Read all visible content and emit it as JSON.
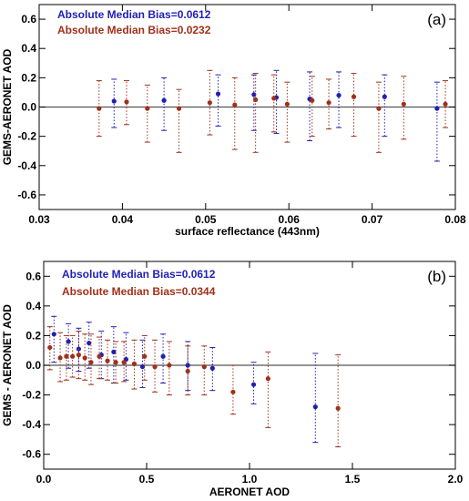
{
  "colors": {
    "blue": "#1f1fb4",
    "red": "#a0301a",
    "zero_line": "#555555"
  },
  "chart_data": [
    {
      "type": "scatter",
      "panel_label": "(a)",
      "xlabel": "surface reflectance (443nm)",
      "ylabel": "GEMS-AERONET AOD",
      "xlim": [
        0.03,
        0.08
      ],
      "ylim": [
        -0.7,
        0.7
      ],
      "x_ticks": [
        "0.03",
        "0.04",
        "0.05",
        "0.06",
        "0.07",
        "0.08"
      ],
      "y_ticks": [
        "-0.6",
        "-0.4",
        "-0.2",
        "0.0",
        "0.2",
        "0.4",
        "0.6"
      ],
      "legend": [
        "Absolute Median Bias=0.0612",
        "Absolute Median Bias=0.0232"
      ],
      "series": [
        {
          "color": "blue",
          "points": [
            {
              "x": 0.039,
              "y": 0.04,
              "lo": -0.14,
              "hi": 0.19
            },
            {
              "x": 0.045,
              "y": 0.045,
              "lo": -0.16,
              "hi": 0.2
            },
            {
              "x": 0.0515,
              "y": 0.09,
              "lo": -0.13,
              "hi": 0.22
            },
            {
              "x": 0.0558,
              "y": 0.085,
              "lo": -0.16,
              "hi": 0.22
            },
            {
              "x": 0.0585,
              "y": 0.065,
              "lo": -0.18,
              "hi": 0.25
            },
            {
              "x": 0.0625,
              "y": 0.055,
              "lo": -0.23,
              "hi": 0.24
            },
            {
              "x": 0.066,
              "y": 0.08,
              "lo": -0.14,
              "hi": 0.24
            },
            {
              "x": 0.0715,
              "y": 0.07,
              "lo": -0.2,
              "hi": 0.22
            },
            {
              "x": 0.0778,
              "y": -0.01,
              "lo": -0.37,
              "hi": 0.17
            }
          ]
        },
        {
          "color": "red",
          "points": [
            {
              "x": 0.0372,
              "y": -0.01,
              "lo": -0.2,
              "hi": 0.18
            },
            {
              "x": 0.0405,
              "y": 0.035,
              "lo": -0.12,
              "hi": 0.18
            },
            {
              "x": 0.043,
              "y": -0.01,
              "lo": -0.24,
              "hi": 0.15
            },
            {
              "x": 0.0468,
              "y": -0.01,
              "lo": -0.31,
              "hi": 0.12
            },
            {
              "x": 0.0505,
              "y": 0.03,
              "lo": -0.19,
              "hi": 0.25
            },
            {
              "x": 0.0535,
              "y": 0.015,
              "lo": -0.29,
              "hi": 0.2
            },
            {
              "x": 0.056,
              "y": 0.05,
              "lo": -0.31,
              "hi": 0.23
            },
            {
              "x": 0.0582,
              "y": 0.06,
              "lo": -0.17,
              "hi": 0.22
            },
            {
              "x": 0.0598,
              "y": 0.02,
              "lo": -0.24,
              "hi": 0.17
            },
            {
              "x": 0.0628,
              "y": 0.045,
              "lo": -0.2,
              "hi": 0.21
            },
            {
              "x": 0.0648,
              "y": 0.03,
              "lo": -0.15,
              "hi": 0.19
            },
            {
              "x": 0.0678,
              "y": 0.07,
              "lo": -0.2,
              "hi": 0.23
            },
            {
              "x": 0.0708,
              "y": -0.01,
              "lo": -0.31,
              "hi": 0.17
            },
            {
              "x": 0.0738,
              "y": 0.02,
              "lo": -0.22,
              "hi": 0.21
            },
            {
              "x": 0.0788,
              "y": 0.02,
              "lo": -0.14,
              "hi": 0.18
            }
          ]
        }
      ]
    },
    {
      "type": "scatter",
      "panel_label": "(b)",
      "xlabel": "AERONET AOD",
      "ylabel": "GEMS - AERONET AOD",
      "xlim": [
        0.0,
        2.0
      ],
      "ylim": [
        -0.7,
        0.7
      ],
      "x_ticks": [
        "0.0",
        "0.5",
        "1.0",
        "1.5",
        "2.0"
      ],
      "y_ticks": [
        "-0.6",
        "-0.4",
        "-0.2",
        "0.0",
        "0.2",
        "0.4",
        "0.6"
      ],
      "legend": [
        "Absolute Median Bias=0.0612",
        "Absolute Median Bias=0.0344"
      ],
      "series": [
        {
          "color": "blue",
          "points": [
            {
              "x": 0.05,
              "y": 0.21,
              "lo": 0.02,
              "hi": 0.33
            },
            {
              "x": 0.12,
              "y": 0.16,
              "lo": -0.02,
              "hi": 0.28
            },
            {
              "x": 0.17,
              "y": 0.11,
              "lo": -0.04,
              "hi": 0.25
            },
            {
              "x": 0.22,
              "y": 0.15,
              "lo": -0.02,
              "hi": 0.29
            },
            {
              "x": 0.28,
              "y": 0.07,
              "lo": -0.09,
              "hi": 0.23
            },
            {
              "x": 0.34,
              "y": 0.09,
              "lo": -0.12,
              "hi": 0.26
            },
            {
              "x": 0.4,
              "y": 0.04,
              "lo": -0.1,
              "hi": 0.22
            },
            {
              "x": 0.48,
              "y": -0.01,
              "lo": -0.15,
              "hi": 0.17
            },
            {
              "x": 0.58,
              "y": 0.06,
              "lo": -0.12,
              "hi": 0.21
            },
            {
              "x": 0.7,
              "y": 0.0,
              "lo": -0.17,
              "hi": 0.16
            },
            {
              "x": 0.82,
              "y": -0.02,
              "lo": -0.17,
              "hi": 0.12
            },
            {
              "x": 1.02,
              "y": -0.13,
              "lo": -0.26,
              "hi": 0.02
            },
            {
              "x": 1.32,
              "y": -0.28,
              "lo": -0.52,
              "hi": 0.08
            }
          ]
        },
        {
          "color": "red",
          "points": [
            {
              "x": 0.03,
              "y": 0.12,
              "lo": -0.03,
              "hi": 0.26
            },
            {
              "x": 0.08,
              "y": 0.05,
              "lo": -0.11,
              "hi": 0.22
            },
            {
              "x": 0.11,
              "y": 0.06,
              "lo": -0.1,
              "hi": 0.2
            },
            {
              "x": 0.14,
              "y": 0.06,
              "lo": -0.08,
              "hi": 0.2
            },
            {
              "x": 0.17,
              "y": 0.07,
              "lo": -0.09,
              "hi": 0.23
            },
            {
              "x": 0.2,
              "y": 0.05,
              "lo": -0.1,
              "hi": 0.21
            },
            {
              "x": 0.23,
              "y": 0.02,
              "lo": -0.13,
              "hi": 0.21
            },
            {
              "x": 0.27,
              "y": 0.06,
              "lo": -0.09,
              "hi": 0.19
            },
            {
              "x": 0.31,
              "y": 0.03,
              "lo": -0.1,
              "hi": 0.17
            },
            {
              "x": 0.35,
              "y": 0.02,
              "lo": -0.12,
              "hi": 0.16
            },
            {
              "x": 0.39,
              "y": 0.02,
              "lo": -0.11,
              "hi": 0.16
            },
            {
              "x": 0.44,
              "y": 0.01,
              "lo": -0.16,
              "hi": 0.17
            },
            {
              "x": 0.49,
              "y": 0.06,
              "lo": -0.1,
              "hi": 0.2
            },
            {
              "x": 0.54,
              "y": -0.01,
              "lo": -0.18,
              "hi": 0.17
            },
            {
              "x": 0.61,
              "y": 0.0,
              "lo": -0.2,
              "hi": 0.16
            },
            {
              "x": 0.7,
              "y": -0.04,
              "lo": -0.2,
              "hi": 0.13
            },
            {
              "x": 0.78,
              "y": -0.01,
              "lo": -0.2,
              "hi": 0.13
            },
            {
              "x": 0.92,
              "y": -0.18,
              "lo": -0.33,
              "hi": 0.0
            },
            {
              "x": 1.09,
              "y": -0.09,
              "lo": -0.42,
              "hi": 0.09
            },
            {
              "x": 1.43,
              "y": -0.29,
              "lo": -0.55,
              "hi": 0.07
            }
          ]
        }
      ]
    }
  ]
}
